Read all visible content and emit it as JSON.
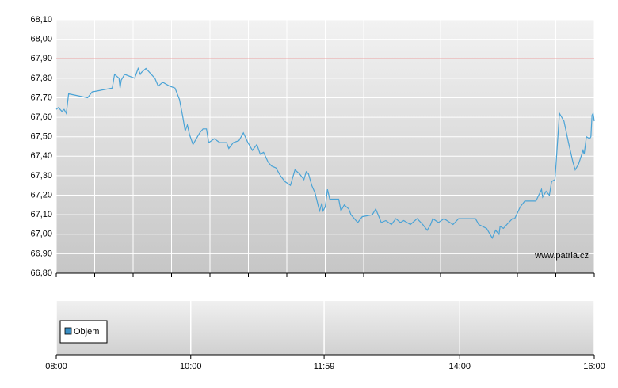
{
  "chart_data": {
    "type": "line",
    "x": [
      "08:00",
      "08:02",
      "08:05",
      "08:07",
      "08:09",
      "08:11",
      "08:28",
      "08:32",
      "08:50",
      "08:52",
      "08:56",
      "08:57",
      "08:58",
      "09:01",
      "09:10",
      "09:13",
      "09:15",
      "09:16",
      "09:20",
      "09:28",
      "09:31",
      "09:35",
      "09:41",
      "09:46",
      "09:50",
      "09:53",
      "09:55",
      "09:57",
      "09:59",
      "10:02",
      "10:04",
      "10:08",
      "10:11",
      "10:14",
      "10:16",
      "10:21",
      "10:26",
      "10:32",
      "10:34",
      "10:38",
      "10:43",
      "10:47",
      "10:51",
      "10:55",
      "10:59",
      "11:02",
      "11:05",
      "11:09",
      "11:12",
      "11:16",
      "11:20",
      "11:24",
      "11:29",
      "11:33",
      "11:37",
      "11:41",
      "11:43",
      "11:45",
      "11:48",
      "11:51",
      "11:54",
      "11:55",
      "11:57",
      "11:58",
      "12:00",
      "12:02",
      "12:04",
      "12:12",
      "12:14",
      "12:17",
      "12:21",
      "12:23",
      "12:26",
      "12:29",
      "12:33",
      "12:42",
      "12:45",
      "12:50",
      "12:54",
      "12:59",
      "13:03",
      "13:07",
      "13:10",
      "13:16",
      "13:22",
      "13:27",
      "13:31",
      "13:34",
      "13:36",
      "13:41",
      "13:46",
      "13:54",
      "13:59",
      "14:14",
      "14:17",
      "14:24",
      "14:29",
      "14:32",
      "14:35",
      "14:36",
      "14:39",
      "14:42",
      "14:47",
      "14:49",
      "14:54",
      "14:58",
      "15:08",
      "15:13",
      "15:14",
      "15:17",
      "15:20",
      "15:22",
      "15:25",
      "15:29",
      "15:33",
      "15:37",
      "15:41",
      "15:43",
      "15:46",
      "15:50",
      "15:51",
      "15:53",
      "15:56",
      "15:57",
      "15:58",
      "15:59",
      "16:00"
    ],
    "series": [
      {
        "color": "#4aa3d6",
        "values": [
          67.64,
          67.65,
          67.63,
          67.64,
          67.62,
          67.72,
          67.7,
          67.73,
          67.75,
          67.82,
          67.8,
          67.75,
          67.79,
          67.82,
          67.8,
          67.85,
          67.82,
          67.83,
          67.85,
          67.8,
          67.76,
          67.78,
          67.76,
          67.75,
          67.69,
          67.6,
          67.53,
          67.56,
          67.51,
          67.46,
          67.48,
          67.52,
          67.54,
          67.54,
          67.47,
          67.49,
          67.47,
          67.47,
          67.44,
          67.47,
          67.48,
          67.52,
          67.47,
          67.43,
          67.46,
          67.41,
          67.42,
          67.37,
          67.35,
          67.34,
          67.3,
          67.27,
          67.25,
          67.33,
          67.31,
          67.28,
          67.32,
          67.31,
          67.25,
          67.21,
          67.14,
          67.12,
          67.16,
          67.12,
          67.14,
          67.23,
          67.18,
          67.18,
          67.12,
          67.15,
          67.13,
          67.1,
          67.08,
          67.06,
          67.09,
          67.1,
          67.13,
          67.06,
          67.07,
          67.05,
          67.08,
          67.06,
          67.07,
          67.05,
          67.08,
          67.05,
          67.02,
          67.05,
          67.08,
          67.06,
          67.08,
          67.05,
          67.08,
          67.08,
          67.05,
          67.03,
          66.98,
          67.02,
          67.0,
          67.04,
          67.03,
          67.05,
          67.08,
          67.08,
          67.14,
          67.17,
          67.17,
          67.23,
          67.19,
          67.22,
          67.2,
          67.27,
          67.28,
          67.62,
          67.58,
          67.47,
          67.37,
          67.33,
          67.36,
          67.43,
          67.41,
          67.5,
          67.49,
          67.5,
          67.61,
          67.62,
          67.58
        ]
      }
    ],
    "reference_line": {
      "value": 67.9,
      "color": "#e05050"
    },
    "ylim": [
      66.8,
      68.1
    ],
    "yticks": [
      {
        "value": 66.8,
        "label": "66,80"
      },
      {
        "value": 66.9,
        "label": "66,90"
      },
      {
        "value": 67.0,
        "label": "67,00"
      },
      {
        "value": 67.1,
        "label": "67,10"
      },
      {
        "value": 67.2,
        "label": "67,20"
      },
      {
        "value": 67.3,
        "label": "67,30"
      },
      {
        "value": 67.4,
        "label": "67,40"
      },
      {
        "value": 67.5,
        "label": "67,50"
      },
      {
        "value": 67.6,
        "label": "67,60"
      },
      {
        "value": 67.7,
        "label": "67,70"
      },
      {
        "value": 67.8,
        "label": "67,80"
      },
      {
        "value": 67.9,
        "label": "67,90"
      },
      {
        "value": 68.0,
        "label": "68,00"
      },
      {
        "value": 68.1,
        "label": "68,10"
      }
    ],
    "xlim": [
      "08:00",
      "16:00"
    ],
    "xticks": [
      "08:00",
      "10:00",
      "11:59",
      "14:00",
      "16:00"
    ],
    "grid": true,
    "watermark": "www.patria.cz",
    "volume": {
      "name": "Objem",
      "color": "#3a8fc4"
    }
  }
}
